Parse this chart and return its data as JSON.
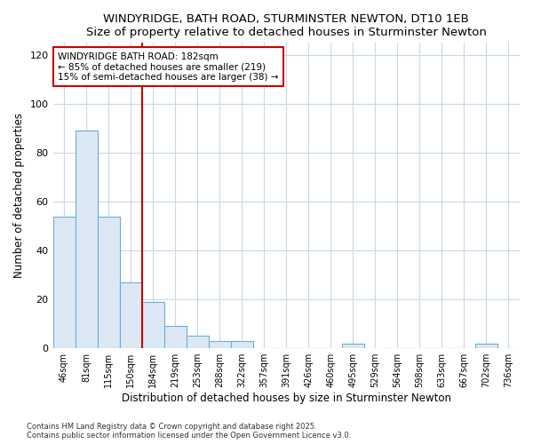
{
  "title": "WINDYRIDGE, BATH ROAD, STURMINSTER NEWTON, DT10 1EB",
  "subtitle": "Size of property relative to detached houses in Sturminster Newton",
  "xlabel": "Distribution of detached houses by size in Sturminster Newton",
  "ylabel": "Number of detached properties",
  "categories": [
    "46sqm",
    "81sqm",
    "115sqm",
    "150sqm",
    "184sqm",
    "219sqm",
    "253sqm",
    "288sqm",
    "322sqm",
    "357sqm",
    "391sqm",
    "426sqm",
    "460sqm",
    "495sqm",
    "529sqm",
    "564sqm",
    "598sqm",
    "633sqm",
    "667sqm",
    "702sqm",
    "736sqm"
  ],
  "values": [
    54,
    89,
    54,
    27,
    19,
    9,
    5,
    3,
    3,
    0,
    0,
    0,
    0,
    2,
    0,
    0,
    0,
    0,
    0,
    2,
    0
  ],
  "bar_color": "#dce9f5",
  "bar_edge_color": "#6aaed6",
  "ref_line_x": "184sqm",
  "ref_line_color": "#cc0000",
  "annotation_title": "WINDYRIDGE BATH ROAD: 182sqm",
  "annotation_line1": "← 85% of detached houses are smaller (219)",
  "annotation_line2": "15% of semi-detached houses are larger (38) →",
  "ylim": [
    0,
    125
  ],
  "yticks": [
    0,
    20,
    40,
    60,
    80,
    100,
    120
  ],
  "footnote1": "Contains HM Land Registry data © Crown copyright and database right 2025.",
  "footnote2": "Contains public sector information licensed under the Open Government Licence v3.0.",
  "bg_color": "#ffffff",
  "plot_bg_color": "#ffffff",
  "grid_color": "#c8d8e8"
}
